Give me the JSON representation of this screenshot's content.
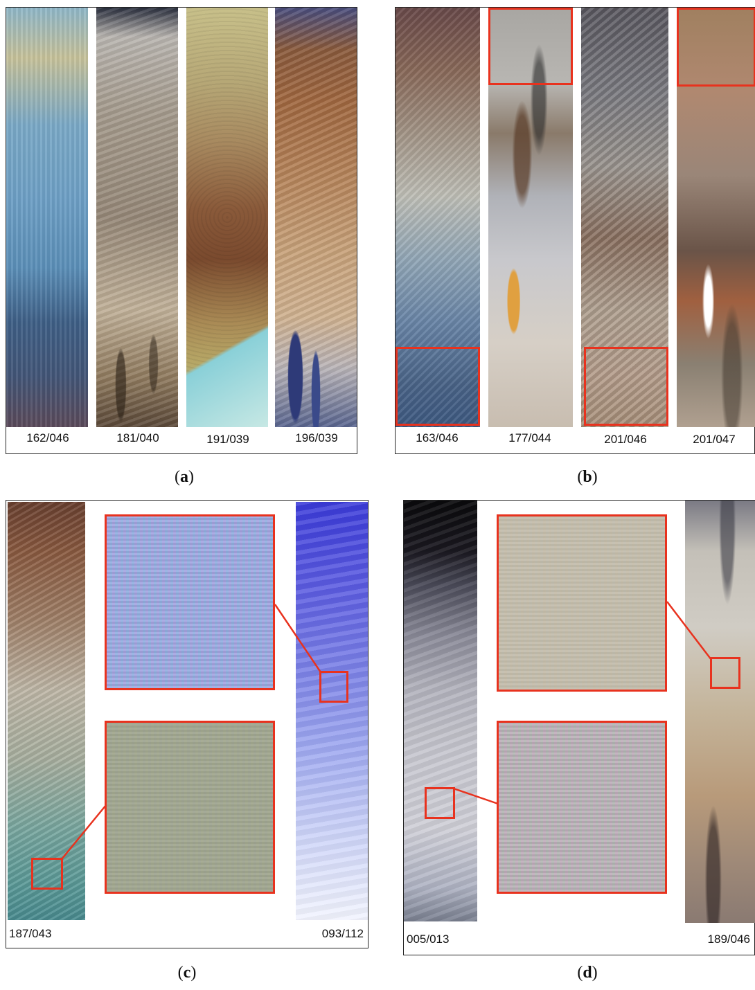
{
  "panels": {
    "a": {
      "caption_open": "(",
      "caption_letter": "a",
      "caption_close": ")",
      "strips": [
        "162/046",
        "181/040",
        "191/039",
        "196/039"
      ]
    },
    "b": {
      "caption_open": "(",
      "caption_letter": "b",
      "caption_close": ")",
      "strips": [
        "163/046",
        "177/044",
        "201/046",
        "201/047"
      ]
    },
    "c": {
      "caption_open": "(",
      "caption_letter": "c",
      "caption_close": ")",
      "left_strip": "187/043",
      "right_strip": "093/112"
    },
    "d": {
      "caption_open": "(",
      "caption_letter": "d",
      "caption_close": ")",
      "left_strip": "005/013",
      "right_strip": "189/046"
    }
  },
  "colors": {
    "highlight": "#e8321e",
    "border": "#222222"
  }
}
